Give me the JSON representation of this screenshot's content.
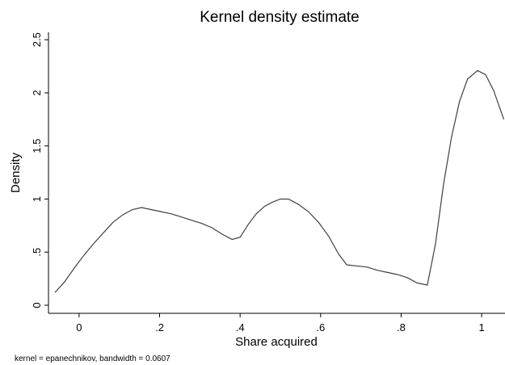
{
  "chart_data": {
    "type": "line",
    "title": "Kernel density estimate",
    "xlabel": "Share acquired",
    "ylabel": "Density",
    "note": "kernel = epanechnikov, bandwidth = 0.0607",
    "xlim": [
      -0.076,
      1.058
    ],
    "ylim": [
      -0.076,
      2.57
    ],
    "xticks": [
      0,
      {
        "value": 0.2,
        "label": ".2"
      },
      {
        "value": 0.4,
        "label": ".4"
      },
      {
        "value": 0.6,
        "label": ".6"
      },
      {
        "value": 0.8,
        "label": ".8"
      },
      1
    ],
    "yticks": [
      0,
      {
        "value": 0.5,
        "label": ".5"
      },
      1,
      1.5,
      2,
      2.5
    ],
    "grid": false,
    "series": [
      {
        "color": "#404040",
        "x": [
          -0.06,
          -0.036,
          -0.012,
          0.012,
          0.036,
          0.06,
          0.084,
          0.108,
          0.132,
          0.155,
          0.18,
          0.205,
          0.23,
          0.255,
          0.28,
          0.305,
          0.33,
          0.355,
          0.38,
          0.4,
          0.42,
          0.44,
          0.46,
          0.48,
          0.5,
          0.52,
          0.545,
          0.57,
          0.595,
          0.62,
          0.645,
          0.665,
          0.69,
          0.715,
          0.74,
          0.765,
          0.79,
          0.815,
          0.84,
          0.865,
          0.885,
          0.905,
          0.925,
          0.945,
          0.965,
          0.99,
          1.01,
          1.03,
          1.055
        ],
        "values": [
          0.12,
          0.22,
          0.35,
          0.47,
          0.58,
          0.68,
          0.78,
          0.85,
          0.9,
          0.92,
          0.9,
          0.88,
          0.86,
          0.83,
          0.8,
          0.77,
          0.73,
          0.67,
          0.62,
          0.64,
          0.76,
          0.86,
          0.93,
          0.97,
          1.0,
          1.0,
          0.95,
          0.88,
          0.78,
          0.65,
          0.48,
          0.38,
          0.37,
          0.36,
          0.33,
          0.31,
          0.29,
          0.26,
          0.21,
          0.19,
          0.57,
          1.13,
          1.58,
          1.92,
          2.13,
          2.21,
          2.17,
          2.02,
          1.75
        ]
      }
    ]
  }
}
